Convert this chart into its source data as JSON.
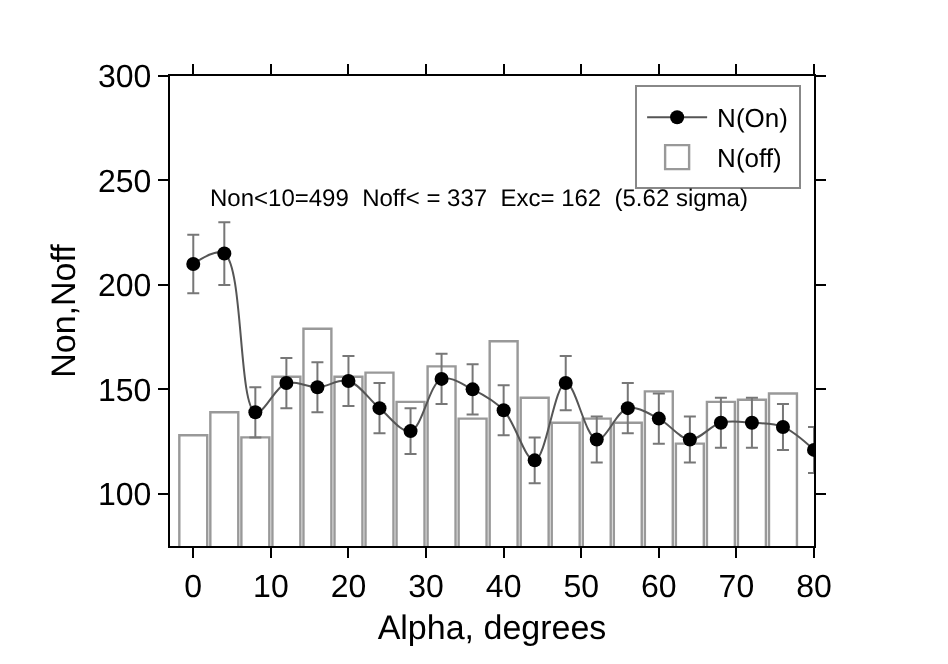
{
  "chart_data": {
    "type": "bar",
    "xlabel": "Alpha, degrees",
    "ylabel": "Non,Noff",
    "annotations": [
      "Non<10=499  Noff< = 337  Exc= 162  (5.62 sigma)"
    ],
    "series": [
      {
        "name": "N(On)",
        "type": "line",
        "color": "#000000",
        "marker": "circle",
        "x": [
          0,
          4,
          8,
          12,
          16,
          20,
          24,
          28,
          32,
          36,
          40,
          44,
          48,
          52,
          56,
          60,
          64,
          68,
          72,
          76,
          80
        ],
        "values": [
          210,
          215,
          139,
          153,
          151,
          154,
          141,
          130,
          155,
          150,
          140,
          116,
          153,
          126,
          141,
          136,
          126,
          134,
          134,
          132,
          121
        ],
        "errors": [
          14,
          15,
          12,
          12,
          12,
          12,
          12,
          11,
          12,
          12,
          12,
          11,
          13,
          11,
          12,
          12,
          11,
          12,
          12,
          11,
          11
        ]
      },
      {
        "name": "N(off)",
        "color": "#ffffff",
        "x": [
          0,
          4,
          8,
          12,
          16,
          20,
          24,
          28,
          32,
          36,
          40,
          44,
          48,
          52,
          56,
          60,
          64,
          68,
          72,
          76
        ],
        "values": [
          128,
          139,
          127,
          156,
          179,
          156,
          158,
          144,
          161,
          136,
          173,
          146,
          134,
          136,
          134,
          149,
          124,
          144,
          145,
          148
        ]
      }
    ],
    "xlim": [
      -3,
      80
    ],
    "xticks": [
      0,
      10,
      20,
      30,
      40,
      50,
      60,
      70,
      80
    ],
    "ylim": [
      75,
      300
    ],
    "yticks": [
      100,
      150,
      200,
      250,
      300
    ],
    "grid": false,
    "legend": "top right"
  }
}
